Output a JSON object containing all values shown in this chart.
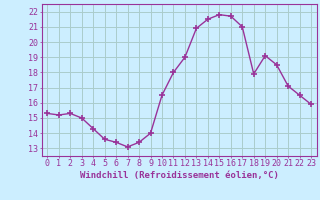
{
  "x": [
    0,
    1,
    2,
    3,
    4,
    5,
    6,
    7,
    8,
    9,
    10,
    11,
    12,
    13,
    14,
    15,
    16,
    17,
    18,
    19,
    20,
    21,
    22,
    23
  ],
  "y": [
    15.3,
    15.2,
    15.3,
    15.0,
    14.3,
    13.6,
    13.4,
    13.1,
    13.4,
    14.0,
    16.5,
    18.0,
    19.0,
    20.9,
    21.5,
    21.8,
    21.7,
    21.0,
    17.9,
    19.1,
    18.5,
    17.1,
    16.5,
    15.9
  ],
  "line_color": "#993399",
  "marker": "+",
  "markersize": 4,
  "markeredgewidth": 1.2,
  "linewidth": 1.0,
  "bg_color": "#cceeff",
  "grid_color": "#aacccc",
  "xlabel": "Windchill (Refroidissement éolien,°C)",
  "xlim": [
    -0.5,
    23.5
  ],
  "ylim": [
    12.5,
    22.5
  ],
  "yticks": [
    13,
    14,
    15,
    16,
    17,
    18,
    19,
    20,
    21,
    22
  ],
  "xticks": [
    0,
    1,
    2,
    3,
    4,
    5,
    6,
    7,
    8,
    9,
    10,
    11,
    12,
    13,
    14,
    15,
    16,
    17,
    18,
    19,
    20,
    21,
    22,
    23
  ],
  "tick_color": "#993399",
  "label_color": "#993399",
  "xlabel_fontsize": 6.5,
  "tick_fontsize": 6.0,
  "spine_color": "#993399",
  "spine_linewidth": 0.8
}
